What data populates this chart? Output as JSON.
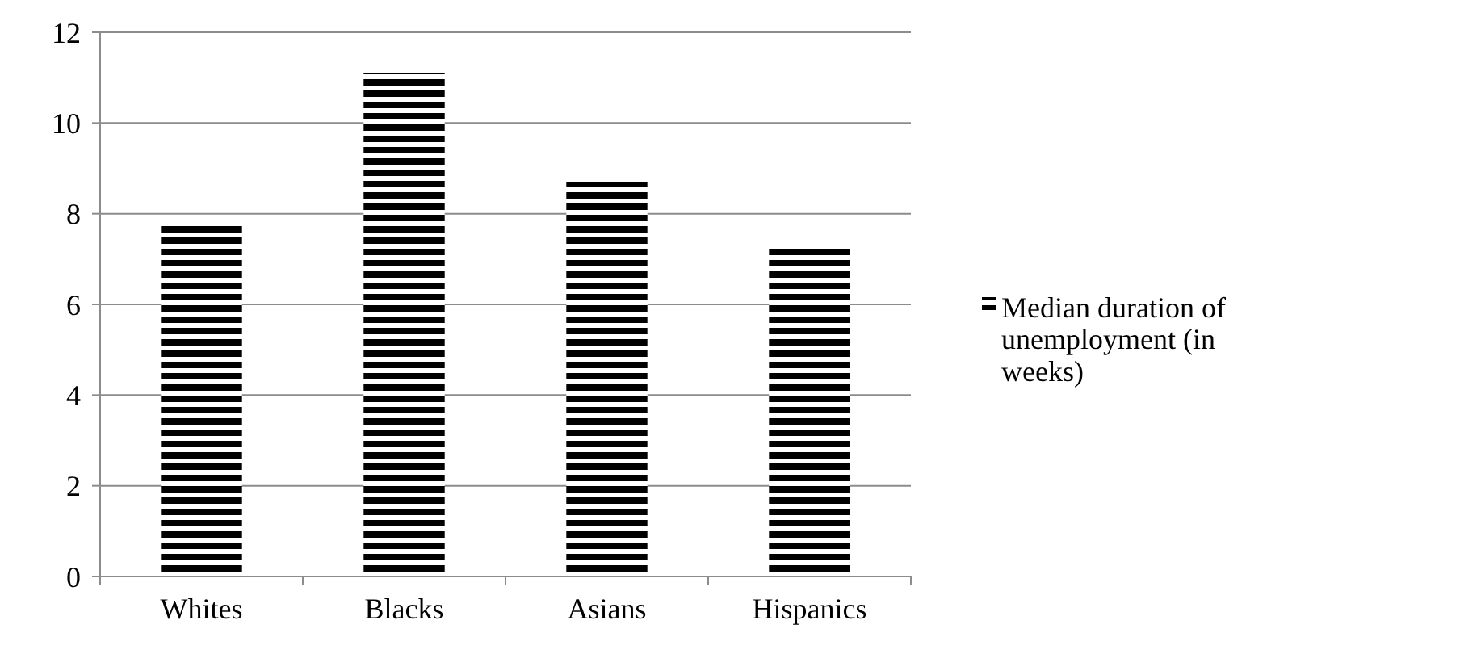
{
  "chart_data": {
    "type": "bar",
    "categories": [
      "Whites",
      "Blacks",
      "Asians",
      "Hispanics"
    ],
    "series": [
      {
        "name": "Median duration of unemployment (in weeks)",
        "color": "#000000",
        "values": [
          7.8,
          11.1,
          8.7,
          7.3
        ]
      }
    ],
    "ylim": [
      0,
      12
    ],
    "yticks": [
      0,
      2,
      4,
      6,
      8,
      10,
      12
    ],
    "grid": "y",
    "legend": "right"
  }
}
